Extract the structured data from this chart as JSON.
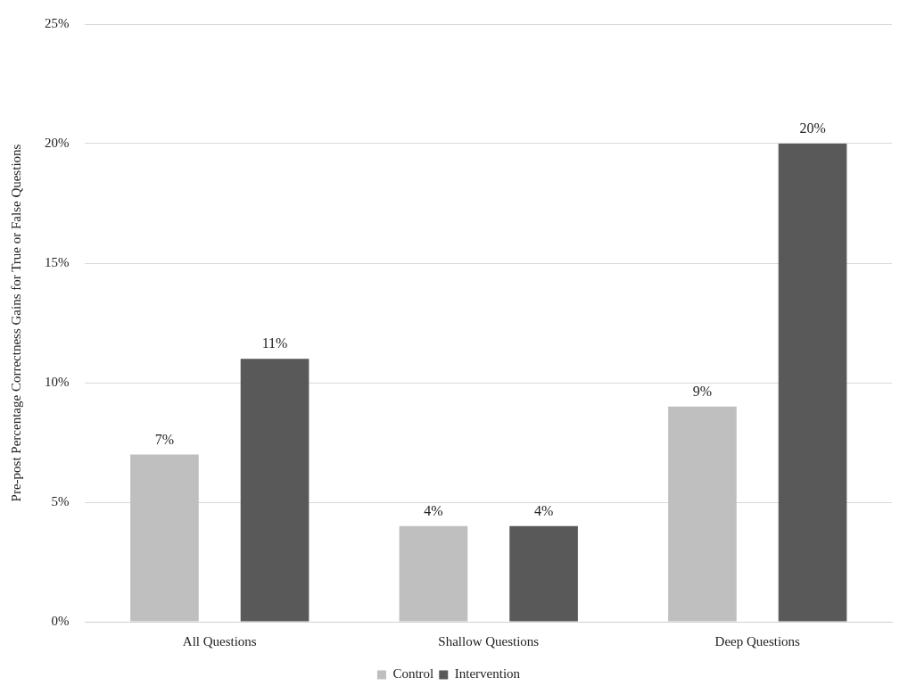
{
  "chart_data": {
    "type": "bar",
    "ylabel": "Pre-post Percentage Correctness Gains for True or False Questions",
    "categories": [
      "All Questions",
      "Shallow Questions",
      "Deep Questions"
    ],
    "series": [
      {
        "name": "Control",
        "color": "#bfbfbf",
        "values": [
          7,
          4,
          9
        ],
        "value_labels": [
          "7%",
          "4%",
          "9%"
        ]
      },
      {
        "name": "Intervention",
        "color": "#595959",
        "values": [
          11,
          4,
          20
        ],
        "value_labels": [
          "11%",
          "4%",
          "20%"
        ]
      }
    ],
    "ylim": [
      0,
      25
    ],
    "yticks": [
      {
        "value": 0,
        "label": "0%"
      },
      {
        "value": 5,
        "label": "5%"
      },
      {
        "value": 10,
        "label": "10%"
      },
      {
        "value": 15,
        "label": "15%"
      },
      {
        "value": 20,
        "label": "20%"
      },
      {
        "value": 25,
        "label": "25%"
      }
    ],
    "grid": "y",
    "legend": "bottom"
  }
}
